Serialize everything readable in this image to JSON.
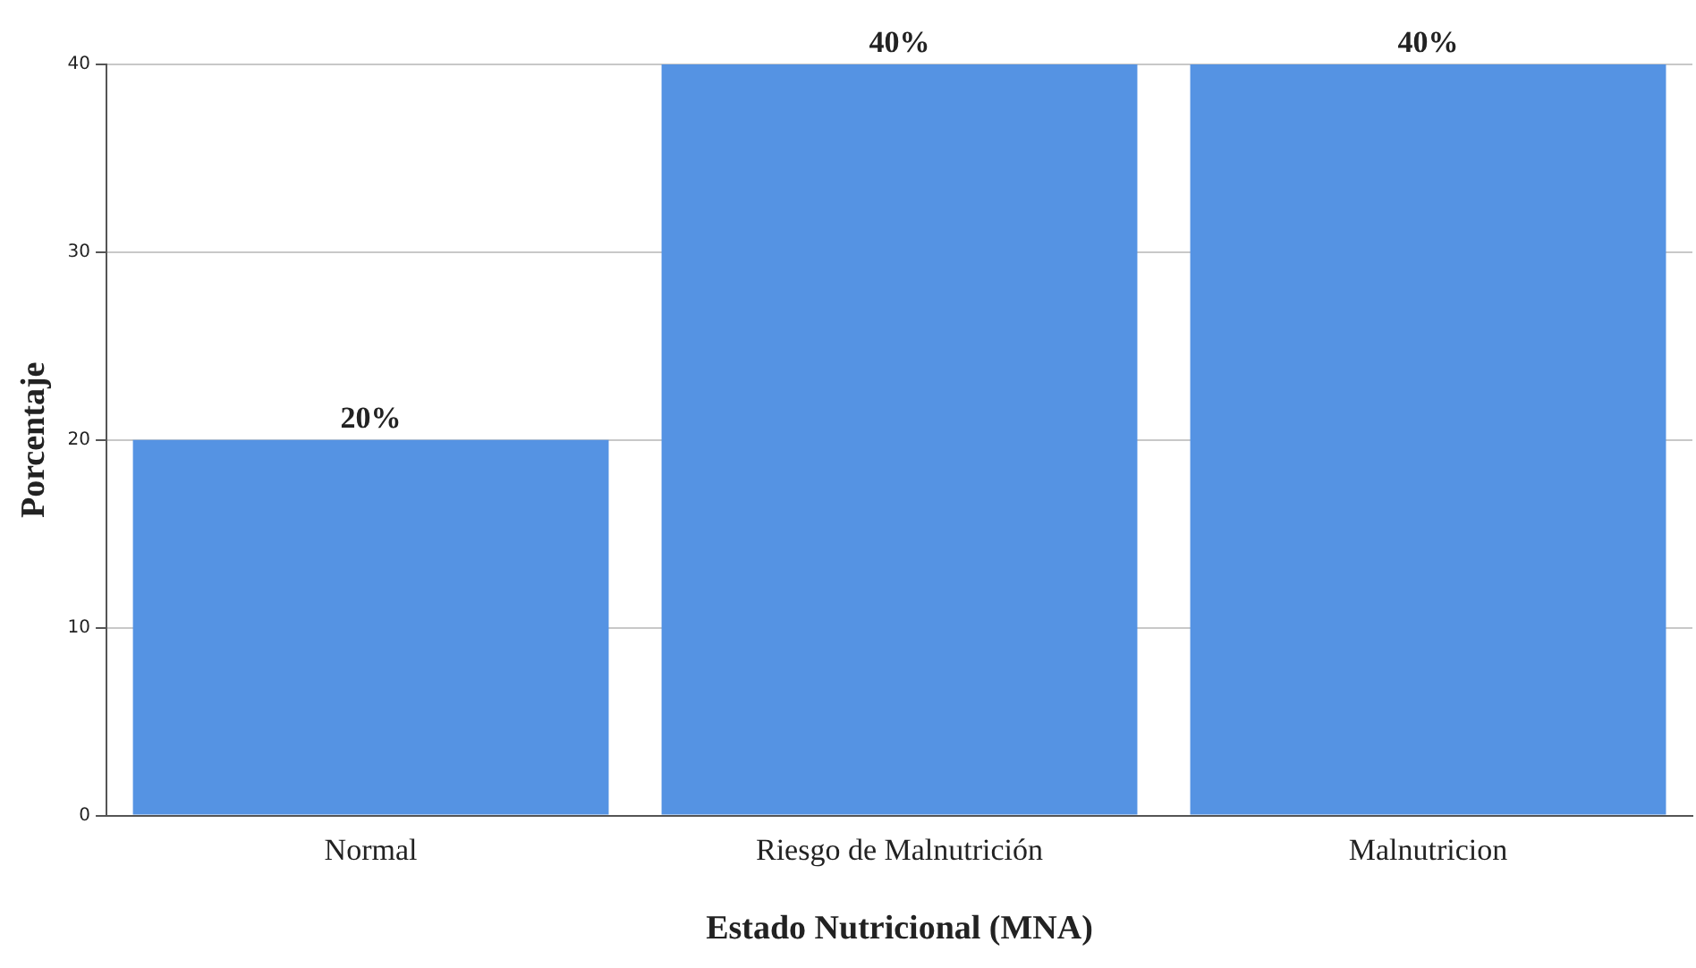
{
  "chart_data": {
    "type": "bar",
    "xlabel": "Estado Nutricional (MNA)",
    "ylabel": "Porcentaje",
    "categories": [
      "Normal",
      "Riesgo de Malnutrición",
      "Malnutricion"
    ],
    "values": [
      20,
      40,
      40
    ],
    "value_labels": [
      "20%",
      "40%",
      "40%"
    ],
    "color": "#5593e3",
    "ylim": [
      0,
      40
    ],
    "yticks": [
      0,
      10,
      20,
      30,
      40
    ],
    "grid": "y",
    "legend": false
  }
}
